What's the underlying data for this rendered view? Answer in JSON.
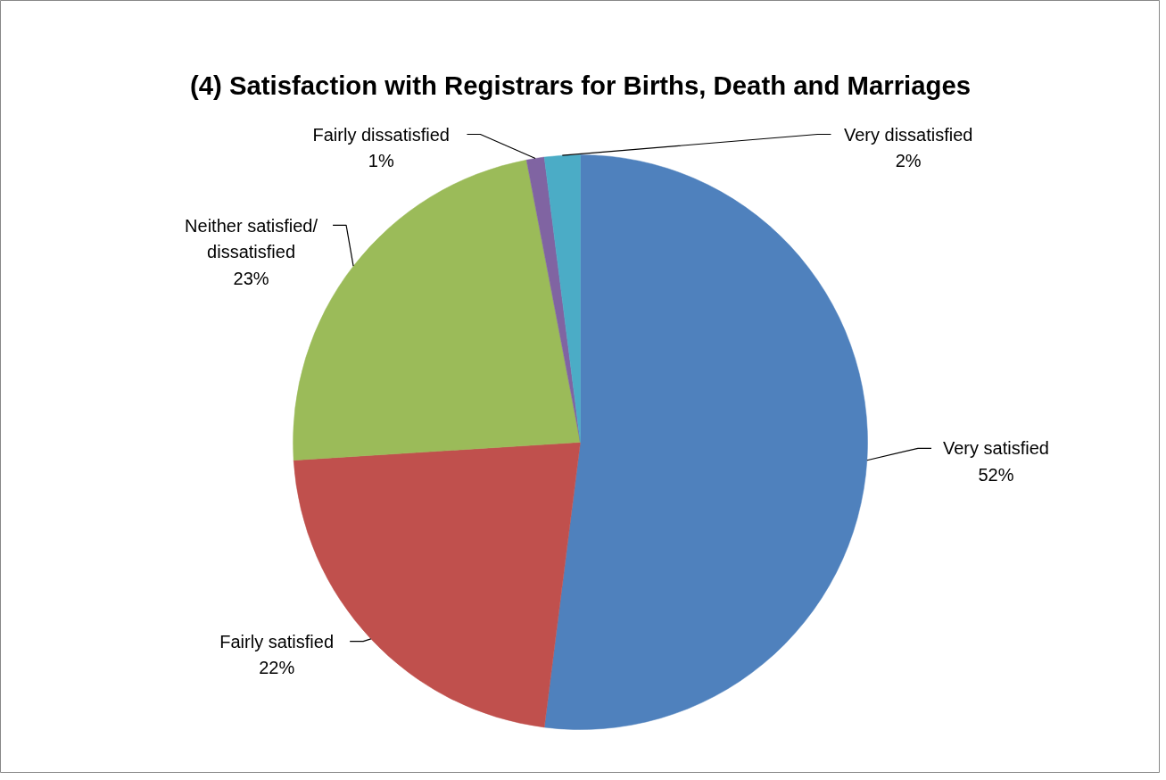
{
  "chart_data": {
    "type": "pie",
    "title": "(4) Satisfaction with Registrars for Births, Death and Marriages",
    "categories": [
      "Very satisfied",
      "Fairly satisfied",
      "Neither satisfied/ dissatisfied",
      "Fairly dissatisfied",
      "Very dissatisfied"
    ],
    "values": [
      52,
      22,
      23,
      1,
      2
    ],
    "colors": [
      "#4f81bd",
      "#c0504d",
      "#9bbb59",
      "#8064a2",
      "#4bacc6"
    ],
    "value_labels": [
      "52%",
      "22%",
      "23%",
      "1%",
      "2%"
    ]
  }
}
